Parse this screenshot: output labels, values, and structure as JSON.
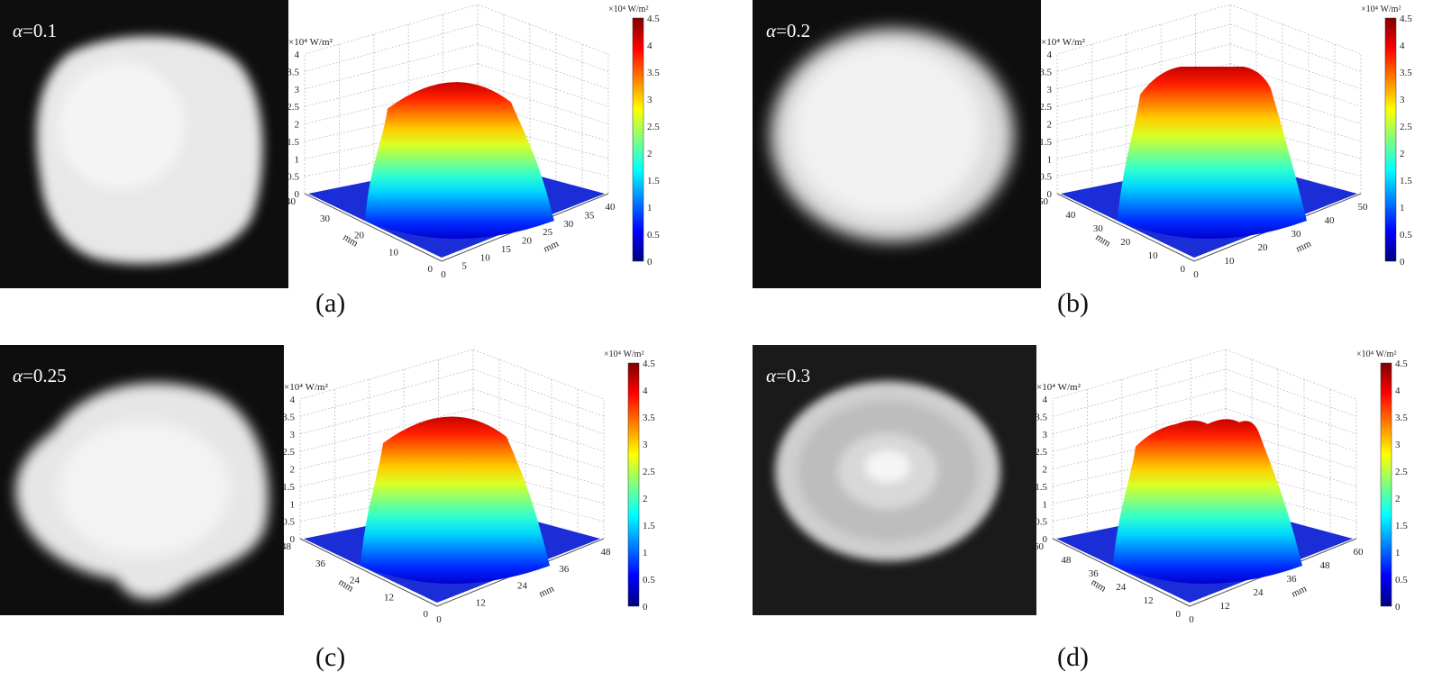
{
  "panels": [
    {
      "id": "a",
      "caption": "(a)",
      "alpha_symbol": "α",
      "alpha_value": "=0.1",
      "unit": "×10⁴ W/m²",
      "xlabel": "mm",
      "ylabel": "mm",
      "z_ticks": [
        "0",
        "0.5",
        "1",
        "1.5",
        "2",
        "2.5",
        "3",
        "3.5",
        "4"
      ],
      "y_ticks": [
        "0",
        "10",
        "20",
        "30",
        "40"
      ],
      "x_ticks": [
        "0",
        "5",
        "10",
        "15",
        "20",
        "25",
        "30",
        "35",
        "40"
      ],
      "colorbar_ticks": [
        "0",
        "0.5",
        "1",
        "1.5",
        "2",
        "2.5",
        "3",
        "3.5",
        "4",
        "4.5"
      ],
      "peak": 3.6,
      "top_shape": "dome"
    },
    {
      "id": "b",
      "caption": "(b)",
      "alpha_symbol": "α",
      "alpha_value": "=0.2",
      "unit": "×10⁴ W/m²",
      "xlabel": "mm",
      "ylabel": "mm",
      "z_ticks": [
        "0",
        "0.5",
        "1",
        "1.5",
        "2",
        "2.5",
        "3",
        "3.5",
        "4"
      ],
      "y_ticks": [
        "0",
        "10",
        "20",
        "30",
        "40",
        "50"
      ],
      "x_ticks": [
        "0",
        "10",
        "20",
        "30",
        "40",
        "50"
      ],
      "colorbar_ticks": [
        "0",
        "0.5",
        "1",
        "1.5",
        "2",
        "2.5",
        "3",
        "3.5",
        "4",
        "4.5"
      ],
      "peak": 4.0,
      "top_shape": "flat"
    },
    {
      "id": "c",
      "caption": "(c)",
      "alpha_symbol": "α",
      "alpha_value": "=0.25",
      "unit": "×10⁴ W/m²",
      "xlabel": "mm",
      "ylabel": "mm",
      "z_ticks": [
        "0",
        "0.5",
        "1",
        "1.5",
        "2",
        "2.5",
        "3",
        "3.5",
        "4"
      ],
      "y_ticks": [
        "0",
        "12",
        "24",
        "36",
        "48"
      ],
      "x_ticks": [
        "0",
        "12",
        "24",
        "36",
        "48"
      ],
      "colorbar_ticks": [
        "0",
        "0.5",
        "1",
        "1.5",
        "2",
        "2.5",
        "3",
        "3.5",
        "4",
        "4.5"
      ],
      "peak": 3.9,
      "top_shape": "dome"
    },
    {
      "id": "d",
      "caption": "(d)",
      "alpha_symbol": "α",
      "alpha_value": "=0.3",
      "unit": "×10⁴ W/m²",
      "xlabel": "mm",
      "ylabel": "mm",
      "z_ticks": [
        "0",
        "0.5",
        "1",
        "1.5",
        "2",
        "2.5",
        "3",
        "3.5",
        "4"
      ],
      "y_ticks": [
        "0",
        "12",
        "24",
        "36",
        "48",
        "60"
      ],
      "x_ticks": [
        "0",
        "12",
        "24",
        "36",
        "48",
        "60"
      ],
      "colorbar_ticks": [
        "0",
        "0.5",
        "1",
        "1.5",
        "2",
        "2.5",
        "3",
        "3.5",
        "4",
        "4.5"
      ],
      "peak": 3.8,
      "top_shape": "bumpy"
    }
  ],
  "colors": {
    "background": "#ffffff",
    "photo_background": "#0e0e0e",
    "jet": [
      "#00007f",
      "#0000ff",
      "#007fff",
      "#00ffff",
      "#7fff7f",
      "#ffff00",
      "#ff7f00",
      "#ff0000",
      "#7f0000"
    ]
  }
}
